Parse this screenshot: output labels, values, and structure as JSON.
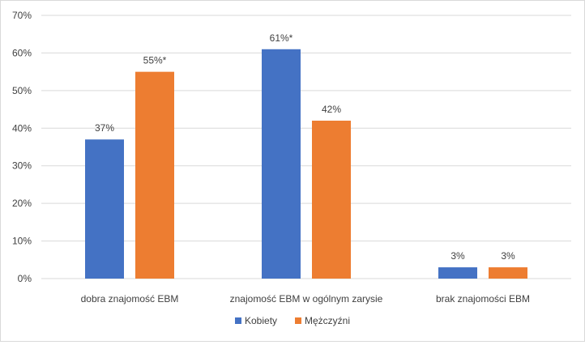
{
  "chart_data": {
    "type": "bar",
    "categories": [
      "dobra znajomość EBM",
      "znajomość EBM w ogólnym zarysie",
      "brak znajomości EBM"
    ],
    "series": [
      {
        "name": "Kobiety",
        "color": "#4472C4",
        "values": [
          37,
          61,
          3
        ],
        "labels": [
          "37%",
          "61%*",
          "3%"
        ]
      },
      {
        "name": "Mężczyźni",
        "color": "#ED7D31",
        "values": [
          55,
          42,
          3
        ],
        "labels": [
          "55%*",
          "42%",
          "3%"
        ]
      }
    ],
    "ylim": [
      0,
      70
    ],
    "yticks": [
      0,
      10,
      20,
      30,
      40,
      50,
      60,
      70
    ],
    "ytick_labels": [
      "0%",
      "10%",
      "20%",
      "30%",
      "40%",
      "50%",
      "60%",
      "70%"
    ],
    "grid": true,
    "legend": "bottom"
  }
}
